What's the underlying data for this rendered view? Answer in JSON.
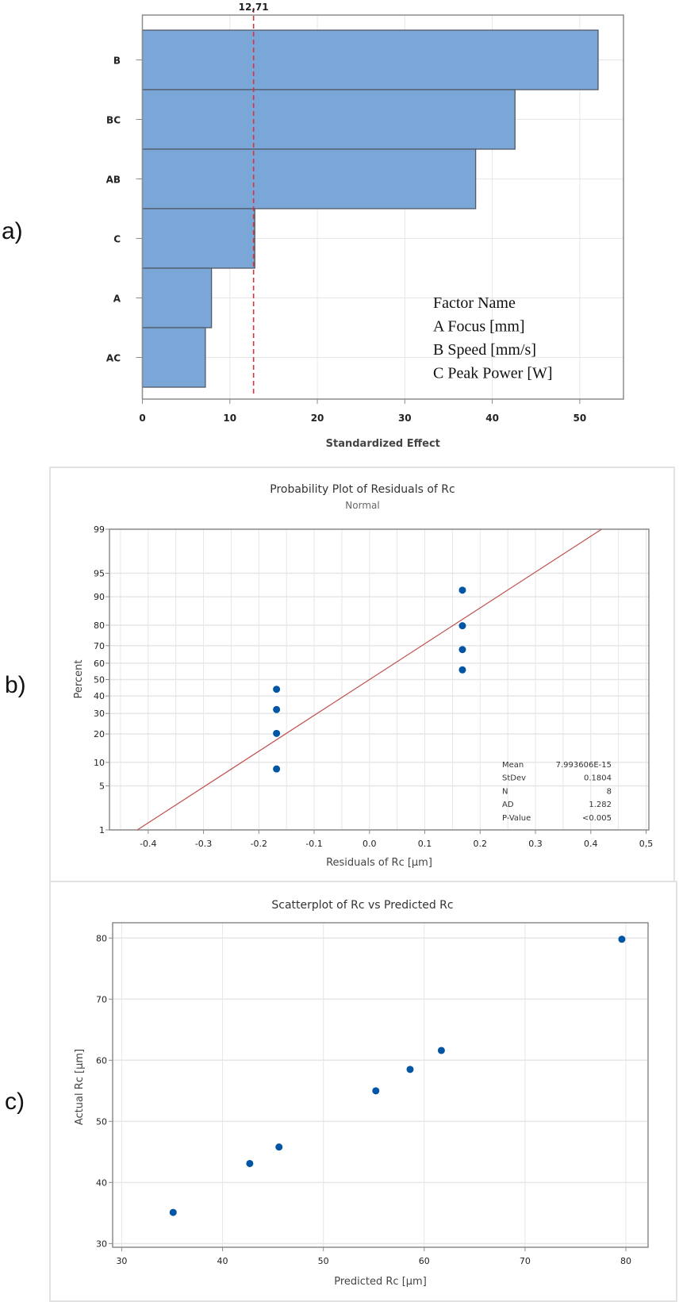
{
  "panel_labels": [
    "a)",
    "b)",
    "c)"
  ],
  "colors": {
    "bar": "#7ba6d8",
    "bar_edge": "#505a66",
    "reference": "#d9343a",
    "fit_line": "#c0504d",
    "points": "#0055a5",
    "grid": "#e6e6e6",
    "frame": "#8c8c8c"
  },
  "chart_data": [
    {
      "type": "bar",
      "orientation": "horizontal",
      "categories": [
        "B",
        "BC",
        "AB",
        "C",
        "A",
        "AC"
      ],
      "values": [
        52.1,
        42.6,
        38.1,
        12.85,
        7.9,
        7.2
      ],
      "reference_line": {
        "value": 12.71,
        "label": "12,71"
      },
      "xlabel": "Standardized Effect",
      "xlim": [
        0,
        55
      ],
      "xticks": [
        "0",
        "10",
        "20",
        "30",
        "40",
        "50"
      ],
      "grid": true,
      "legend": {
        "placement": "bottom-right",
        "lines": [
          "Factor Name",
          "A Focus [mm]",
          "B Speed [mm/s]",
          "C Peak Power [W]"
        ]
      }
    },
    {
      "type": "scatter",
      "title": "Probability Plot of  Residuals of Rc",
      "subtitle": "Normal",
      "xlabel": "Residuals of Rc [μm]",
      "ylabel": "Percent",
      "y_scale": "normal probability",
      "xlim": [
        -0.47,
        0.505
      ],
      "xticks": [
        "-0.4",
        "-0.3",
        "-0.2",
        "-0.1",
        "0.0",
        "0.1",
        "0.2",
        "0.3",
        "0.4",
        "0,5"
      ],
      "yticks": [
        "1",
        "5",
        "10",
        "20",
        "30",
        "40",
        "50",
        "60",
        "70",
        "80",
        "90",
        "95",
        "99"
      ],
      "x": [
        -0.168,
        -0.168,
        -0.168,
        -0.168,
        0.168,
        0.168,
        0.168,
        0.168
      ],
      "y": [
        8.33,
        20.24,
        32.14,
        44.05,
        55.95,
        67.86,
        79.76,
        91.67
      ],
      "fit_line": {
        "mean": 0,
        "stdev": 0.1804
      },
      "grid": true,
      "stats": {
        "placement": "bottom-right",
        "rows": [
          {
            "label": "Mean",
            "value": "7.993606E-15"
          },
          {
            "label": "StDev",
            "value": "0.1804"
          },
          {
            "label": "N",
            "value": "8"
          },
          {
            "label": "AD",
            "value": "1.282"
          },
          {
            "label": "P-Value",
            "value": "<0.005"
          }
        ]
      }
    },
    {
      "type": "scatter",
      "title": "Scatterplot of Rc vs Predicted Rc",
      "xlabel": "Predicted Rc [μm]",
      "ylabel": "Actual Rc [μm]",
      "xlim": [
        29.1,
        82.2
      ],
      "ylim": [
        29.4,
        82.5
      ],
      "xticks": [
        "30",
        "40",
        "50",
        "60",
        "70",
        "80"
      ],
      "yticks": [
        "30",
        "40",
        "50",
        "60",
        "70",
        "80"
      ],
      "x": [
        35.1,
        42.7,
        45.6,
        55.2,
        58.6,
        61.7,
        79.6
      ],
      "y": [
        35.1,
        43.1,
        45.8,
        55.0,
        58.5,
        61.6,
        79.8
      ],
      "grid": true
    }
  ]
}
